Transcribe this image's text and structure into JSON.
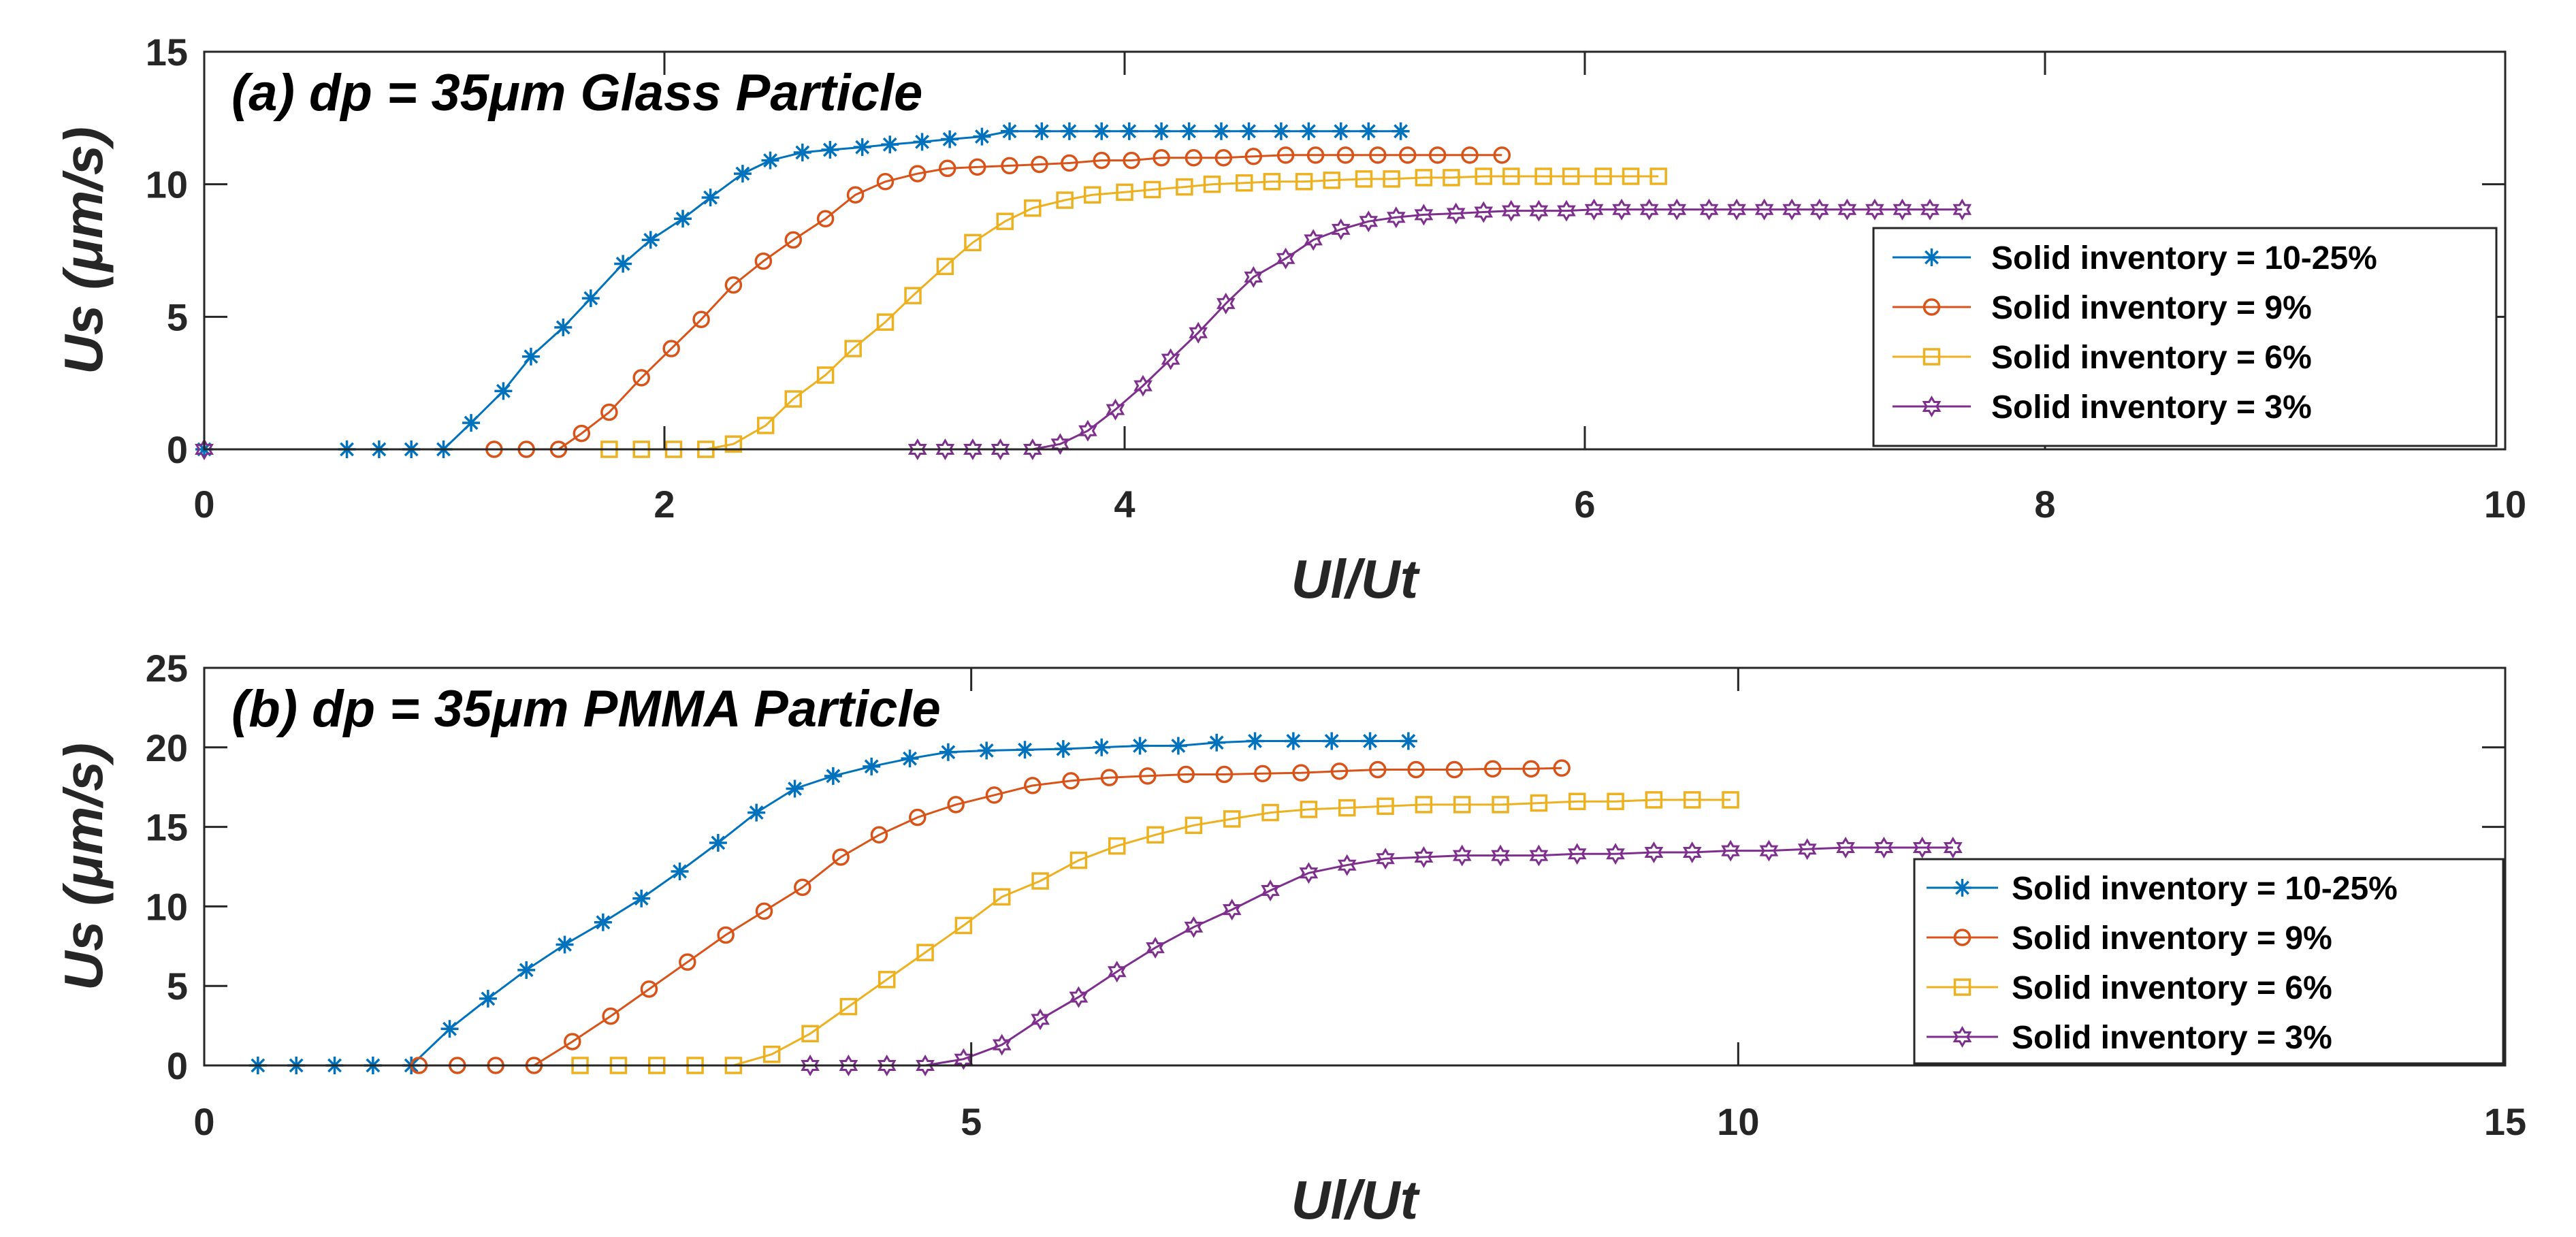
{
  "chart_data": [
    {
      "type": "line",
      "title": "(a) dp = 35μm Glass Particle",
      "xlabel": "Ul/Ut",
      "ylabel": "Us (μm/s)",
      "xlim": [
        0,
        10
      ],
      "ylim": [
        0,
        15
      ],
      "xticks": [
        0,
        2,
        4,
        6,
        8,
        10
      ],
      "yticks": [
        0,
        5,
        10,
        15
      ],
      "legend_position": "right",
      "series": [
        {
          "name": "Solid inventory = 10-25%",
          "color": "#0072BD",
          "marker": "asterisk",
          "x": [
            0,
            0.62,
            0.76,
            0.9,
            1.04,
            1.16,
            1.3,
            1.42,
            1.56,
            1.68,
            1.82,
            1.94,
            2.08,
            2.2,
            2.34,
            2.46,
            2.6,
            2.72,
            2.86,
            2.98,
            3.12,
            3.24,
            3.38,
            3.5,
            3.64,
            3.76,
            3.9,
            4.02,
            4.16,
            4.28,
            4.42,
            4.54,
            4.68,
            4.8,
            4.94,
            5.06,
            5.2
          ],
          "y": [
            0,
            0,
            0,
            0,
            0,
            1.0,
            2.2,
            3.5,
            4.6,
            5.7,
            7.0,
            7.9,
            8.7,
            9.5,
            10.4,
            10.9,
            11.2,
            11.3,
            11.4,
            11.5,
            11.6,
            11.7,
            11.8,
            12.0,
            12.0,
            12.0,
            12.0,
            12.0,
            12.0,
            12.0,
            12.0,
            12.0,
            12.0,
            12.0,
            12.0,
            12.0,
            12.0
          ]
        },
        {
          "name": "Solid inventory = 9%",
          "color": "#D95319",
          "marker": "circle",
          "x": [
            1.26,
            1.4,
            1.54,
            1.64,
            1.76,
            1.9,
            2.03,
            2.16,
            2.3,
            2.43,
            2.56,
            2.7,
            2.83,
            2.96,
            3.1,
            3.23,
            3.36,
            3.5,
            3.63,
            3.76,
            3.9,
            4.03,
            4.16,
            4.3,
            4.43,
            4.56,
            4.7,
            4.83,
            4.96,
            5.1,
            5.23,
            5.36,
            5.5,
            5.64
          ],
          "y": [
            0,
            0,
            0,
            0.6,
            1.4,
            2.7,
            3.8,
            4.9,
            6.2,
            7.1,
            7.9,
            8.7,
            9.6,
            10.1,
            10.4,
            10.6,
            10.65,
            10.7,
            10.75,
            10.8,
            10.9,
            10.9,
            11.0,
            11.0,
            11.0,
            11.05,
            11.1,
            11.1,
            11.1,
            11.1,
            11.1,
            11.1,
            11.1,
            11.1
          ]
        },
        {
          "name": "Solid inventory = 6%",
          "color": "#EDB120",
          "marker": "square",
          "x": [
            1.76,
            1.9,
            2.04,
            2.18,
            2.3,
            2.44,
            2.56,
            2.7,
            2.82,
            2.96,
            3.08,
            3.22,
            3.34,
            3.48,
            3.6,
            3.74,
            3.86,
            4.0,
            4.12,
            4.26,
            4.38,
            4.52,
            4.64,
            4.78,
            4.9,
            5.04,
            5.16,
            5.3,
            5.42,
            5.56,
            5.68,
            5.82,
            5.94,
            6.08,
            6.2,
            6.32
          ],
          "y": [
            0,
            0,
            0,
            0,
            0.2,
            0.9,
            1.9,
            2.8,
            3.8,
            4.8,
            5.8,
            6.9,
            7.8,
            8.6,
            9.1,
            9.4,
            9.6,
            9.7,
            9.8,
            9.9,
            10.0,
            10.05,
            10.1,
            10.1,
            10.15,
            10.2,
            10.2,
            10.25,
            10.25,
            10.3,
            10.3,
            10.3,
            10.3,
            10.3,
            10.3,
            10.3
          ]
        },
        {
          "name": "Solid inventory = 3%",
          "color": "#7E2F8E",
          "marker": "hexagram",
          "x": [
            0,
            3.1,
            3.22,
            3.34,
            3.46,
            3.6,
            3.72,
            3.84,
            3.96,
            4.08,
            4.2,
            4.32,
            4.44,
            4.56,
            4.7,
            4.82,
            4.94,
            5.06,
            5.18,
            5.3,
            5.44,
            5.56,
            5.68,
            5.8,
            5.92,
            6.04,
            6.16,
            6.28,
            6.4,
            6.54,
            6.66,
            6.78,
            6.9,
            7.02,
            7.14,
            7.26,
            7.38,
            7.5,
            7.64
          ],
          "y": [
            0,
            0,
            0,
            0,
            0,
            0,
            0.2,
            0.7,
            1.5,
            2.4,
            3.4,
            4.4,
            5.5,
            6.5,
            7.2,
            7.9,
            8.3,
            8.6,
            8.75,
            8.85,
            8.9,
            8.95,
            9.0,
            9.0,
            9.0,
            9.05,
            9.05,
            9.05,
            9.05,
            9.05,
            9.05,
            9.05,
            9.05,
            9.05,
            9.05,
            9.05,
            9.05,
            9.05,
            9.05
          ]
        }
      ]
    },
    {
      "type": "line",
      "title": "(b) dp = 35μm PMMA Particle",
      "xlabel": "Ul/Ut",
      "ylabel": "Us (μm/s)",
      "xlim": [
        0,
        15
      ],
      "ylim": [
        0,
        25
      ],
      "xticks": [
        0,
        5,
        10,
        15
      ],
      "yticks": [
        0,
        5,
        10,
        15,
        20,
        25
      ],
      "legend_position": "right",
      "series": [
        {
          "name": "Solid inventory = 10-25%",
          "color": "#0072BD",
          "marker": "asterisk",
          "x": [
            0.35,
            0.6,
            0.85,
            1.1,
            1.35,
            1.6,
            1.85,
            2.1,
            2.35,
            2.6,
            2.85,
            3.1,
            3.35,
            3.6,
            3.85,
            4.1,
            4.35,
            4.6,
            4.85,
            5.1,
            5.35,
            5.6,
            5.85,
            6.1,
            6.35,
            6.6,
            6.85,
            7.1,
            7.35,
            7.6,
            7.85
          ],
          "y": [
            0,
            0,
            0,
            0,
            0,
            2.3,
            4.2,
            6.0,
            7.6,
            9.0,
            10.5,
            12.2,
            14.0,
            15.9,
            17.4,
            18.2,
            18.8,
            19.3,
            19.7,
            19.8,
            19.85,
            19.9,
            20.0,
            20.1,
            20.1,
            20.3,
            20.4,
            20.4,
            20.4,
            20.4,
            20.4
          ]
        },
        {
          "name": "Solid inventory = 9%",
          "color": "#D95319",
          "marker": "circle",
          "x": [
            1.4,
            1.65,
            1.9,
            2.15,
            2.4,
            2.65,
            2.9,
            3.15,
            3.4,
            3.65,
            3.9,
            4.15,
            4.4,
            4.65,
            4.9,
            5.15,
            5.4,
            5.65,
            5.9,
            6.15,
            6.4,
            6.65,
            6.9,
            7.15,
            7.4,
            7.65,
            7.9,
            8.15,
            8.4,
            8.65,
            8.85
          ],
          "y": [
            0,
            0,
            0,
            0,
            1.5,
            3.1,
            4.8,
            6.5,
            8.2,
            9.7,
            11.2,
            13.1,
            14.5,
            15.6,
            16.4,
            17.0,
            17.6,
            17.9,
            18.1,
            18.2,
            18.3,
            18.3,
            18.35,
            18.4,
            18.5,
            18.6,
            18.6,
            18.6,
            18.65,
            18.65,
            18.7
          ]
        },
        {
          "name": "Solid inventory = 6%",
          "color": "#EDB120",
          "marker": "square",
          "x": [
            2.45,
            2.7,
            2.95,
            3.2,
            3.45,
            3.7,
            3.95,
            4.2,
            4.45,
            4.7,
            4.95,
            5.2,
            5.45,
            5.7,
            5.95,
            6.2,
            6.45,
            6.7,
            6.95,
            7.2,
            7.45,
            7.7,
            7.95,
            8.2,
            8.45,
            8.7,
            8.95,
            9.2,
            9.45,
            9.7,
            9.95
          ],
          "y": [
            0,
            0,
            0,
            0,
            0,
            0.7,
            2.0,
            3.7,
            5.4,
            7.1,
            8.8,
            10.6,
            11.6,
            12.9,
            13.8,
            14.5,
            15.1,
            15.5,
            15.9,
            16.1,
            16.2,
            16.3,
            16.4,
            16.4,
            16.4,
            16.5,
            16.6,
            16.6,
            16.7,
            16.7,
            16.7
          ]
        },
        {
          "name": "Solid inventory = 3%",
          "color": "#7E2F8E",
          "marker": "hexagram",
          "x": [
            3.95,
            4.2,
            4.45,
            4.7,
            4.95,
            5.2,
            5.45,
            5.7,
            5.95,
            6.2,
            6.45,
            6.7,
            6.95,
            7.2,
            7.45,
            7.7,
            7.95,
            8.2,
            8.45,
            8.7,
            8.95,
            9.2,
            9.45,
            9.7,
            9.95,
            10.2,
            10.45,
            10.7,
            10.95,
            11.2,
            11.4
          ],
          "y": [
            0,
            0,
            0,
            0,
            0.4,
            1.3,
            2.9,
            4.3,
            5.9,
            7.4,
            8.7,
            9.8,
            11.0,
            12.1,
            12.6,
            13.0,
            13.1,
            13.2,
            13.2,
            13.2,
            13.3,
            13.3,
            13.4,
            13.4,
            13.5,
            13.5,
            13.6,
            13.7,
            13.7,
            13.7,
            13.7
          ]
        }
      ]
    }
  ]
}
